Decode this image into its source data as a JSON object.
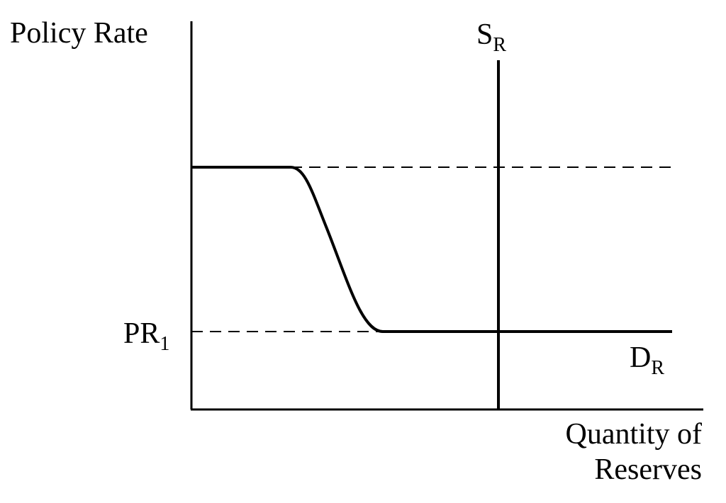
{
  "axes": {
    "y_label": "Policy Rate",
    "x_label": [
      "Quantity of",
      "Reserves"
    ]
  },
  "supply": {
    "label": "S",
    "subscript": "R"
  },
  "demand": {
    "label": "D",
    "subscript": "R"
  },
  "rate": {
    "label": "PR",
    "subscript": "1"
  }
}
